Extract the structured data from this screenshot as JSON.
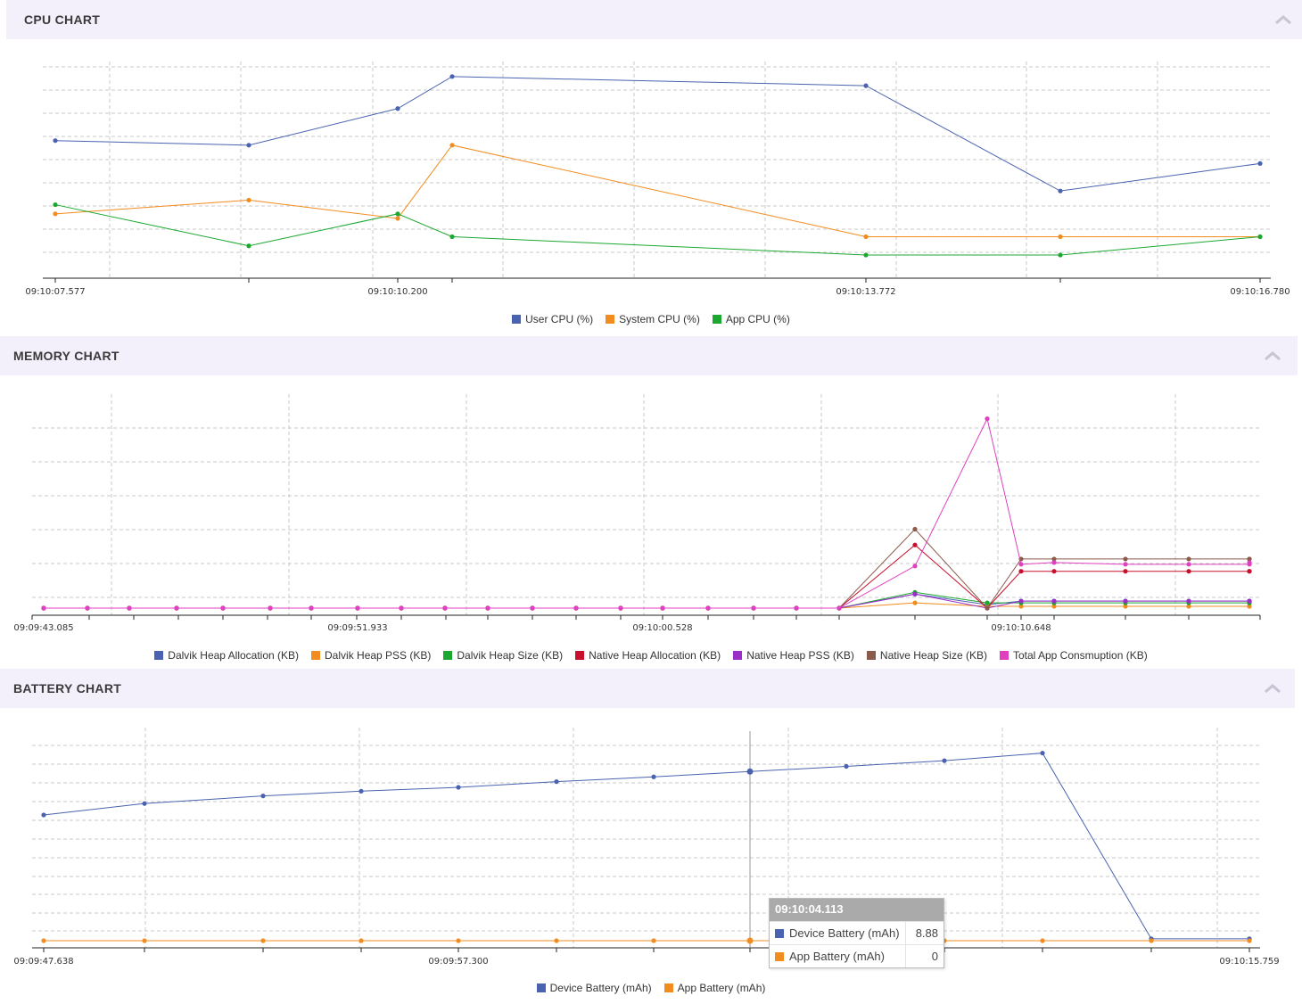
{
  "colors": {
    "header_bg": "#f3effb",
    "blue": "#4a63b0",
    "orange": "#f28c1e",
    "green": "#1ca830",
    "red": "#c8102e",
    "purple": "#9b30c8",
    "brown": "#8b5a4a",
    "pink": "#e040c0"
  },
  "icons": {
    "collapse": "chevron-up-icon"
  },
  "cpu": {
    "title": "CPU CHART",
    "legend": [
      "User CPU (%)",
      "System CPU (%)",
      "App CPU (%)"
    ],
    "tick_labels": [
      "09:10:07.577",
      "09:10:10.200",
      "09:10:13.772",
      "09:10:16.780"
    ]
  },
  "memory": {
    "title": "MEMORY CHART",
    "legend": [
      "Dalvik Heap Allocation (KB)",
      "Dalvik Heap PSS (KB)",
      "Dalvik Heap Size (KB)",
      "Native Heap Allocation (KB)",
      "Native Heap PSS (KB)",
      "Native Heap Size (KB)",
      "Total App Consmuption (KB)"
    ],
    "tick_labels": [
      "09:09:43.085",
      "09:09:51.933",
      "09:10:00.528",
      "09:10:10.648"
    ]
  },
  "battery": {
    "title": "BATTERY CHART",
    "legend": [
      "Device Battery (mAh)",
      "App Battery (mAh)"
    ],
    "tick_labels": [
      "09:09:47.638",
      "09:09:57.300",
      "09:10:15.759"
    ],
    "tooltip": {
      "time": "09:10:04.113",
      "rows": [
        {
          "label": "Device Battery (mAh)",
          "value": "8.88"
        },
        {
          "label": "App Battery (mAh)",
          "value": "0"
        }
      ]
    }
  },
  "chart_data": [
    {
      "type": "line",
      "title": "CPU CHART",
      "x": [
        "09:10:07.577",
        "09:10:08.9",
        "09:10:10.200",
        "09:10:10.6",
        "09:10:13.772",
        "09:10:15.2",
        "09:10:16.780"
      ],
      "ylim": [
        0,
        9
      ],
      "grid": true,
      "legend_position": "bottom",
      "series": [
        {
          "name": "User CPU (%)",
          "values": [
            5.7,
            5.5,
            7.1,
            8.5,
            8.1,
            3.5,
            4.7
          ]
        },
        {
          "name": "System CPU (%)",
          "values": [
            2.5,
            3.1,
            2.3,
            5.5,
            1.5,
            1.5,
            1.5
          ]
        },
        {
          "name": "App CPU (%)",
          "values": [
            2.9,
            1.1,
            2.5,
            1.5,
            0.7,
            0.7,
            1.5
          ]
        }
      ]
    },
    {
      "type": "line",
      "title": "MEMORY CHART",
      "x": [
        "09:09:43.085",
        "",
        "",
        "",
        "",
        "",
        "",
        "09:09:51.933",
        "",
        "",
        "",
        "",
        "",
        "",
        "09:10:00.528",
        "",
        "",
        "",
        "",
        "",
        "",
        "",
        "09:10:10.648",
        "",
        "",
        "",
        ""
      ],
      "ylim": [
        0,
        6
      ],
      "grid": true,
      "legend_position": "bottom",
      "series": [
        {
          "name": "Dalvik Heap Allocation (KB)",
          "values": [
            0,
            0,
            0,
            0,
            0,
            0,
            0,
            0,
            0,
            0,
            0,
            0,
            0,
            0,
            0,
            0,
            0,
            0,
            0,
            0.4,
            0.1,
            0.2,
            0.2,
            0.2,
            0.2,
            0.2,
            0.2
          ]
        },
        {
          "name": "Dalvik Heap PSS (KB)",
          "values": [
            0,
            0,
            0,
            0,
            0,
            0,
            0,
            0,
            0,
            0,
            0,
            0,
            0,
            0,
            0,
            0,
            0,
            0,
            0,
            0.15,
            0.05,
            0.05,
            0.05,
            0.05,
            0.05,
            0.05,
            0.05
          ]
        },
        {
          "name": "Dalvik Heap Size (KB)",
          "values": [
            0,
            0,
            0,
            0,
            0,
            0,
            0,
            0,
            0,
            0,
            0,
            0,
            0,
            0,
            0,
            0,
            0,
            0,
            0,
            0.45,
            0.15,
            0.15,
            0.15,
            0.15,
            0.15,
            0.15,
            0.15
          ]
        },
        {
          "name": "Native Heap Allocation (KB)",
          "values": [
            0,
            0,
            0,
            0,
            0,
            0,
            0,
            0,
            0,
            0,
            0,
            0,
            0,
            0,
            0,
            0,
            0,
            0,
            0,
            1.8,
            0,
            1.05,
            1.05,
            1.05,
            1.05,
            1.05,
            1.05
          ]
        },
        {
          "name": "Native Heap PSS (KB)",
          "values": [
            0,
            0,
            0,
            0,
            0,
            0,
            0,
            0,
            0,
            0,
            0,
            0,
            0,
            0,
            0,
            0,
            0,
            0,
            0,
            0.4,
            0,
            0.2,
            0.2,
            0.2,
            0.2,
            0.2,
            0.2
          ]
        },
        {
          "name": "Native Heap Size (KB)",
          "values": [
            0,
            0,
            0,
            0,
            0,
            0,
            0,
            0,
            0,
            0,
            0,
            0,
            0,
            0,
            0,
            0,
            0,
            0,
            0,
            2.25,
            0,
            1.4,
            1.4,
            1.4,
            1.4,
            1.4,
            1.4
          ]
        },
        {
          "name": "Total App Consmuption (KB)",
          "values": [
            0,
            0,
            0,
            0,
            0,
            0,
            0,
            0,
            0,
            0,
            0,
            0,
            0,
            0,
            0,
            0,
            0,
            0,
            0,
            1.2,
            5.4,
            1.25,
            1.3,
            1.25,
            1.25,
            1.25,
            1.3
          ]
        }
      ]
    },
    {
      "type": "line",
      "title": "BATTERY CHART",
      "x": [
        "09:09:47.638",
        "",
        "",
        "09:09:57.300",
        "",
        "",
        "",
        "09:10:04.113",
        "",
        "",
        "",
        "",
        "09:10:15.759"
      ],
      "ylim": [
        0,
        11
      ],
      "grid": true,
      "legend_position": "bottom",
      "series": [
        {
          "name": "Device Battery (mAh)",
          "values": [
            6.6,
            7.2,
            7.6,
            7.85,
            8.05,
            8.35,
            8.6,
            8.88,
            9.15,
            9.45,
            9.85,
            0.1,
            0.1
          ]
        },
        {
          "name": "App Battery (mAh)",
          "values": [
            0,
            0,
            0,
            0,
            0,
            0,
            0,
            0,
            0,
            0,
            0,
            0,
            0
          ]
        }
      ]
    }
  ]
}
